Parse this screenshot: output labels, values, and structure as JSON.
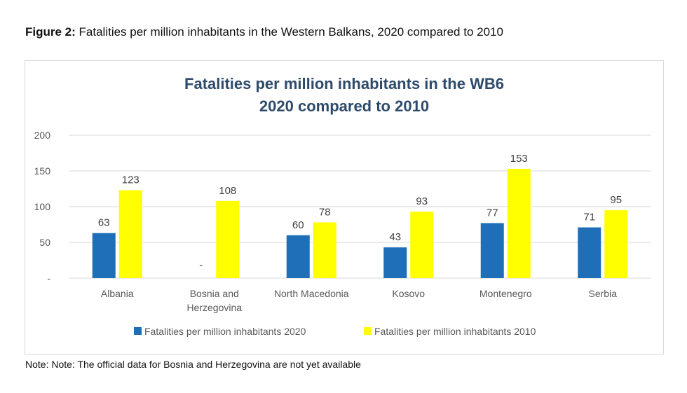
{
  "caption": {
    "label": "Figure 2:",
    "text": " Fatalities per million inhabitants in the Western Balkans, 2020 compared to 2010"
  },
  "note": "Note: Note: The official data for Bosnia and Herzegovina are not yet available",
  "colors": {
    "series_2020": "#1f6fb8",
    "series_2010": "#ffff00",
    "gridline": "#d9d9d9",
    "axis_text": "#595959",
    "title": "#2e4a6b"
  },
  "chart_data": {
    "type": "bar",
    "title_lines": [
      "Fatalities per million inhabitants in the WB6",
      "2020 compared to 2010"
    ],
    "categories": [
      [
        "Albania"
      ],
      [
        "Bosnia and",
        "Herzegovina"
      ],
      [
        "North Macedonia"
      ],
      [
        "Kosovo"
      ],
      [
        "Montenegro"
      ],
      [
        "Serbia"
      ]
    ],
    "series": [
      {
        "name": "Fatalities per million inhabitants 2020",
        "values": [
          63,
          null,
          60,
          43,
          77,
          71
        ],
        "labels": [
          "63",
          "-",
          "60",
          "43",
          "77",
          "71"
        ]
      },
      {
        "name": "Fatalities per million inhabitants 2010",
        "values": [
          123,
          108,
          78,
          93,
          153,
          95
        ],
        "labels": [
          "123",
          "108",
          "78",
          "93",
          "153",
          "95"
        ]
      }
    ],
    "yticks": [
      0,
      50,
      100,
      150,
      200
    ],
    "ytick_labels": [
      "-",
      "50",
      "100",
      "150",
      "200"
    ],
    "ylim": [
      0,
      200
    ],
    "grid": true,
    "legend_position": "bottom"
  }
}
